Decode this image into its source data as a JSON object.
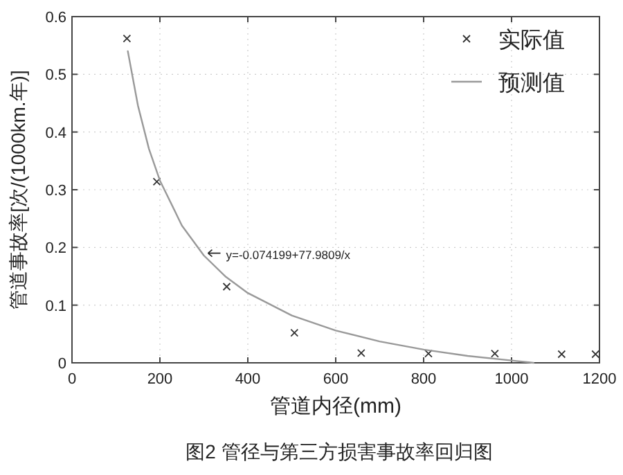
{
  "chart_data": {
    "type": "scatter",
    "xlabel": "管道内径(mm)",
    "ylabel": "管道事故率[次/(1000km.年)]",
    "xlim": [
      0,
      1200
    ],
    "xticks": [
      0,
      200,
      400,
      600,
      800,
      1000,
      1200
    ],
    "ylim": [
      0,
      0.6
    ],
    "yticks": [
      0,
      0.1,
      0.2,
      0.3,
      0.4,
      0.5,
      0.6
    ],
    "grid": true,
    "legend": "top right",
    "series": [
      {
        "name": "实际值",
        "type": "scatter",
        "marker": "cross",
        "color": "#333333",
        "x": [
          125,
          193,
          352,
          506,
          658,
          811,
          962,
          1114,
          1191
        ],
        "values": [
          0.562,
          0.314,
          0.132,
          0.052,
          0.017,
          0.016,
          0.016,
          0.015,
          0.015
        ]
      },
      {
        "name": "预测值",
        "type": "line",
        "marker": "none",
        "color": "#999999",
        "x": [
          127,
          150,
          175,
          200,
          250,
          300,
          350,
          400,
          500,
          600,
          700,
          800,
          900,
          1000,
          1050
        ],
        "values": [
          0.54,
          0.446,
          0.371,
          0.316,
          0.238,
          0.186,
          0.149,
          0.121,
          0.082,
          0.056,
          0.037,
          0.023,
          0.012,
          0.004,
          0.0
        ]
      }
    ],
    "annotations": [
      {
        "text": "y=-0.074199+77.9809/x",
        "x": 300,
        "y": 0.19
      },
      "图2  管径与第三方损害事故率回归图"
    ]
  }
}
